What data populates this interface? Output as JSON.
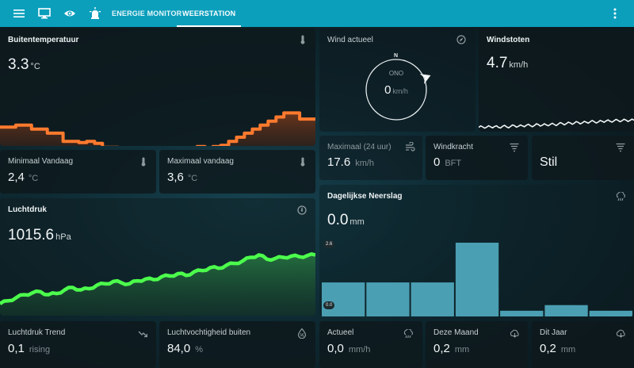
{
  "nav": {
    "tabs": [
      "ENERGIE MONITOR",
      "WEERSTATION"
    ]
  },
  "cards": {
    "outside_temp": {
      "title": "Buitentemperatuur",
      "value": "3.3",
      "unit": "°C"
    },
    "min_today": {
      "title": "Minimaal Vandaag",
      "value": "2,4",
      "unit": "°C"
    },
    "max_today": {
      "title": "Maximaal vandaag",
      "value": "3,6",
      "unit": "°C"
    },
    "pressure": {
      "title": "Luchtdruk",
      "value": "1015.6",
      "unit": "hPa"
    },
    "pressure_trend": {
      "title": "Luchtdruk Trend",
      "value": "0,1",
      "unit": "rising"
    },
    "humidity": {
      "title": "Luchtvochtigheid buiten",
      "value": "84,0",
      "unit": "%"
    },
    "wind": {
      "title": "Wind actueel",
      "north": "N",
      "direction": "ONO",
      "value": "0",
      "unit": "km/h",
      "bearing_deg": 67.5
    },
    "gusts": {
      "title": "Windstoten",
      "value": "4.7",
      "unit": "km/h"
    },
    "max_24h": {
      "title": "Maximaal (24 uur)",
      "value": "17.6",
      "unit": "km/h"
    },
    "windforce": {
      "title": "Windkracht",
      "value": "0",
      "unit": "BFT"
    },
    "calm": {
      "value": "Stil"
    },
    "rain_daily": {
      "title": "Dagelijkse Neerslag",
      "value": "0.0",
      "unit": "mm",
      "axis_max": "2.6",
      "axis_min": "0.0"
    },
    "actual": {
      "title": "Actueel",
      "value": "0,0",
      "unit": "mm/h"
    },
    "this_month": {
      "title": "Deze Maand",
      "value": "0,2",
      "unit": "mm"
    },
    "this_year": {
      "title": "Dit Jaar",
      "value": "0,2",
      "unit": "mm"
    }
  },
  "colors": {
    "header": "#0b9fbc",
    "temperature_line": "#ff7a2e",
    "pressure_line": "#4cff4c",
    "rain_bars": "#4b9fb3"
  },
  "chart_data": [
    {
      "type": "area",
      "series": [
        {
          "values": [
            3.1,
            3.1,
            3.15,
            3.15,
            3.05,
            3.05,
            2.95,
            2.95,
            2.75,
            2.75,
            2.72,
            2.75,
            2.7,
            2.6,
            2.6,
            2.55,
            2.5,
            2.48,
            2.48,
            2.5,
            2.5,
            2.55,
            2.5,
            2.5,
            2.55,
            2.62,
            2.58,
            2.62,
            2.65,
            2.75,
            2.85,
            2.95,
            3.05,
            3.15,
            3.25,
            3.35,
            3.45,
            3.45,
            3.3,
            3.3
          ]
        }
      ]
    },
    {
      "type": "area",
      "series": [
        {
          "values": [
            1007.5,
            1008.0,
            1008.5,
            1009.0,
            1009.3,
            1009.5,
            1009.0,
            1009.2,
            1009.8,
            1010.2,
            1009.8,
            1010.0,
            1010.6,
            1010.8,
            1011.2,
            1011.0,
            1010.8,
            1011.3,
            1011.6,
            1011.5,
            1012.0,
            1012.1,
            1012.5,
            1012.2,
            1012.8,
            1013.0,
            1013.5,
            1013.4,
            1013.9,
            1014.2,
            1014.6,
            1015.2,
            1015.6,
            1014.9,
            1015.0,
            1015.2,
            1015.4,
            1015.3,
            1015.5,
            1015.6
          ]
        }
      ]
    },
    {
      "type": "line",
      "series": [
        {
          "values": [
            0.2,
            0.3,
            0.25,
            0.3,
            0.35,
            0.2,
            0.4,
            0.3,
            0.35,
            0.5,
            0.4,
            0.45,
            0.6,
            0.5,
            0.55,
            0.7,
            0.6,
            0.65,
            0.75,
            0.7,
            0.8,
            0.9,
            0.85,
            1.0,
            0.95,
            1.1,
            1.0,
            1.15,
            1.2,
            1.25,
            1.15,
            1.3,
            1.35,
            1.3,
            1.4,
            1.45,
            1.4,
            1.5,
            1.45,
            1.5
          ]
        }
      ]
    },
    {
      "type": "bar",
      "ylim": [
        0.0,
        2.6
      ],
      "values": [
        1.2,
        1.2,
        1.2,
        2.6,
        0.2,
        0.4,
        0.2
      ]
    }
  ]
}
